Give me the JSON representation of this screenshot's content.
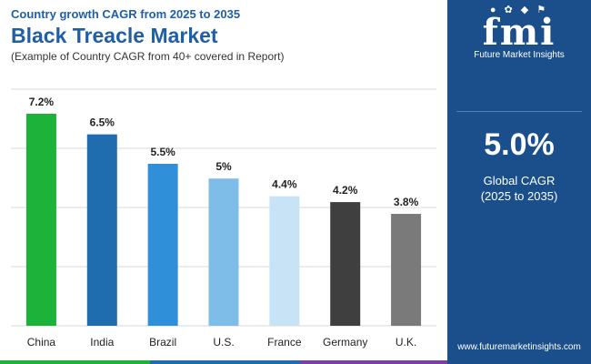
{
  "header": {
    "subtitle": "Country growth CAGR from 2025 to 2035",
    "title": "Black Treacle Market",
    "note": "(Example of Country CAGR from 40+ covered in Report)"
  },
  "chart_data": {
    "type": "bar",
    "categories": [
      "China",
      "India",
      "Brazil",
      "U.S.",
      "France",
      "Germany",
      "U.K."
    ],
    "values": [
      7.2,
      6.5,
      5.5,
      5.0,
      4.4,
      4.2,
      3.8
    ],
    "value_labels": [
      "7.2%",
      "6.5%",
      "5.5%",
      "5%",
      "4.4%",
      "4.2%",
      "3.8%"
    ],
    "colors": [
      "#1db33b",
      "#1f6cae",
      "#2f8fd8",
      "#7dbde7",
      "#c7e3f5",
      "#3f3f3f",
      "#7a7a7a"
    ],
    "ylim": [
      0,
      7.2
    ],
    "grid": true,
    "xlabel": "",
    "ylabel": "",
    "legend": "none"
  },
  "side_panel": {
    "logo_text": "fmi",
    "logo_caption": "Future Market Insights",
    "global_value": "5.0%",
    "global_label_line1": "Global CAGR",
    "global_label_line2": "(2025 to 2035)",
    "website": "www.futuremarketinsights.com",
    "background": "#1a4f8b"
  },
  "footer_colors": [
    "#1db33b",
    "#1f6cae",
    "#7a3fa0"
  ]
}
